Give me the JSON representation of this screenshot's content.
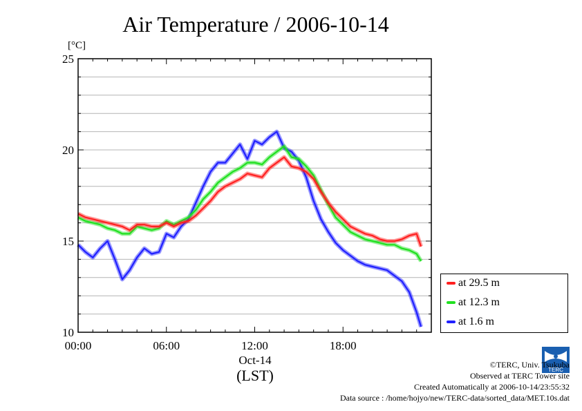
{
  "chart_data": {
    "type": "line",
    "title": "Air Temperature / 2006-10-14",
    "y_unit_label": "[°C]",
    "ylim": [
      10,
      25
    ],
    "yticks": [
      "10",
      "15",
      "20",
      "25"
    ],
    "xlim": [
      0,
      24
    ],
    "xticks": [
      "00:00",
      "06:00",
      "12:00",
      "18:00"
    ],
    "x_date_label": "Oct-14",
    "xlabel": "(LST)",
    "grid": true,
    "legend_position": "bottom-right outside",
    "series": [
      {
        "name": "at 29.5 m",
        "color": "#ff2020",
        "x": [
          0,
          0.5,
          1,
          1.5,
          2,
          2.5,
          3,
          3.5,
          4,
          4.5,
          5,
          5.5,
          6,
          6.5,
          7,
          7.5,
          8,
          8.5,
          9,
          9.5,
          10,
          10.5,
          11,
          11.5,
          12,
          12.5,
          13,
          13.5,
          14,
          14.5,
          15,
          15.5,
          16,
          16.5,
          17,
          17.5,
          18,
          18.5,
          19,
          19.5,
          20,
          20.5,
          21,
          21.5,
          22,
          22.5,
          23,
          23.3
        ],
        "y": [
          16.5,
          16.3,
          16.2,
          16.1,
          16.0,
          15.9,
          15.8,
          15.6,
          15.9,
          15.9,
          15.8,
          15.8,
          16.0,
          15.8,
          16.0,
          16.1,
          16.4,
          16.8,
          17.2,
          17.7,
          18.0,
          18.2,
          18.4,
          18.7,
          18.6,
          18.5,
          19.0,
          19.3,
          19.6,
          19.1,
          19.0,
          18.8,
          18.4,
          17.7,
          17.1,
          16.6,
          16.2,
          15.8,
          15.6,
          15.4,
          15.3,
          15.1,
          15.0,
          15.0,
          15.1,
          15.3,
          15.4,
          14.7
        ]
      },
      {
        "name": "at 12.3 m",
        "color": "#20e020",
        "x": [
          0,
          0.5,
          1,
          1.5,
          2,
          2.5,
          3,
          3.5,
          4,
          4.5,
          5,
          5.5,
          6,
          6.5,
          7,
          7.5,
          8,
          8.5,
          9,
          9.5,
          10,
          10.5,
          11,
          11.5,
          12,
          12.5,
          13,
          13.5,
          14,
          14.5,
          15,
          15.5,
          16,
          16.5,
          17,
          17.5,
          18,
          18.5,
          19,
          19.5,
          20,
          20.5,
          21,
          21.5,
          22,
          22.5,
          23,
          23.3
        ],
        "y": [
          16.3,
          16.1,
          16.0,
          15.9,
          15.7,
          15.6,
          15.4,
          15.4,
          15.8,
          15.7,
          15.6,
          15.7,
          16.1,
          15.9,
          16.1,
          16.3,
          16.7,
          17.3,
          17.7,
          18.2,
          18.5,
          18.8,
          19.0,
          19.3,
          19.3,
          19.2,
          19.6,
          19.9,
          20.2,
          19.6,
          19.5,
          19.1,
          18.6,
          17.8,
          17.0,
          16.3,
          15.9,
          15.5,
          15.3,
          15.1,
          15.0,
          14.9,
          14.8,
          14.8,
          14.6,
          14.5,
          14.3,
          13.9
        ]
      },
      {
        "name": "at 1.6 m",
        "color": "#2020ff",
        "x": [
          0,
          0.5,
          1,
          1.5,
          2,
          2.5,
          3,
          3.5,
          4,
          4.5,
          5,
          5.5,
          6,
          6.5,
          7,
          7.5,
          8,
          8.5,
          9,
          9.5,
          10,
          10.5,
          11,
          11.5,
          12,
          12.5,
          13,
          13.5,
          14,
          14.5,
          15,
          15.5,
          16,
          16.5,
          17,
          17.5,
          18,
          18.5,
          19,
          19.5,
          20,
          20.5,
          21,
          21.5,
          22,
          22.5,
          23,
          23.3
        ],
        "y": [
          14.8,
          14.4,
          14.1,
          14.6,
          15.0,
          14.0,
          12.9,
          13.4,
          14.1,
          14.6,
          14.3,
          14.4,
          15.4,
          15.2,
          15.8,
          16.2,
          17.1,
          18.0,
          18.8,
          19.3,
          19.3,
          19.8,
          20.3,
          19.5,
          20.5,
          20.3,
          20.7,
          21.0,
          20.1,
          19.9,
          19.4,
          18.5,
          17.2,
          16.2,
          15.5,
          14.9,
          14.5,
          14.2,
          13.9,
          13.7,
          13.6,
          13.5,
          13.4,
          13.1,
          12.8,
          12.2,
          11.1,
          10.3
        ]
      }
    ]
  },
  "credits": {
    "copyright": "©TERC, Univ. Tsukuba",
    "site": "Observed at TERC Tower site",
    "created": "Created Automatically at 2006-10-14/23:55:32",
    "source": "Data source : /home/hojyo/new/TERC-data/sorted_data/MET.10s.dat",
    "logo_text": "TERC"
  }
}
